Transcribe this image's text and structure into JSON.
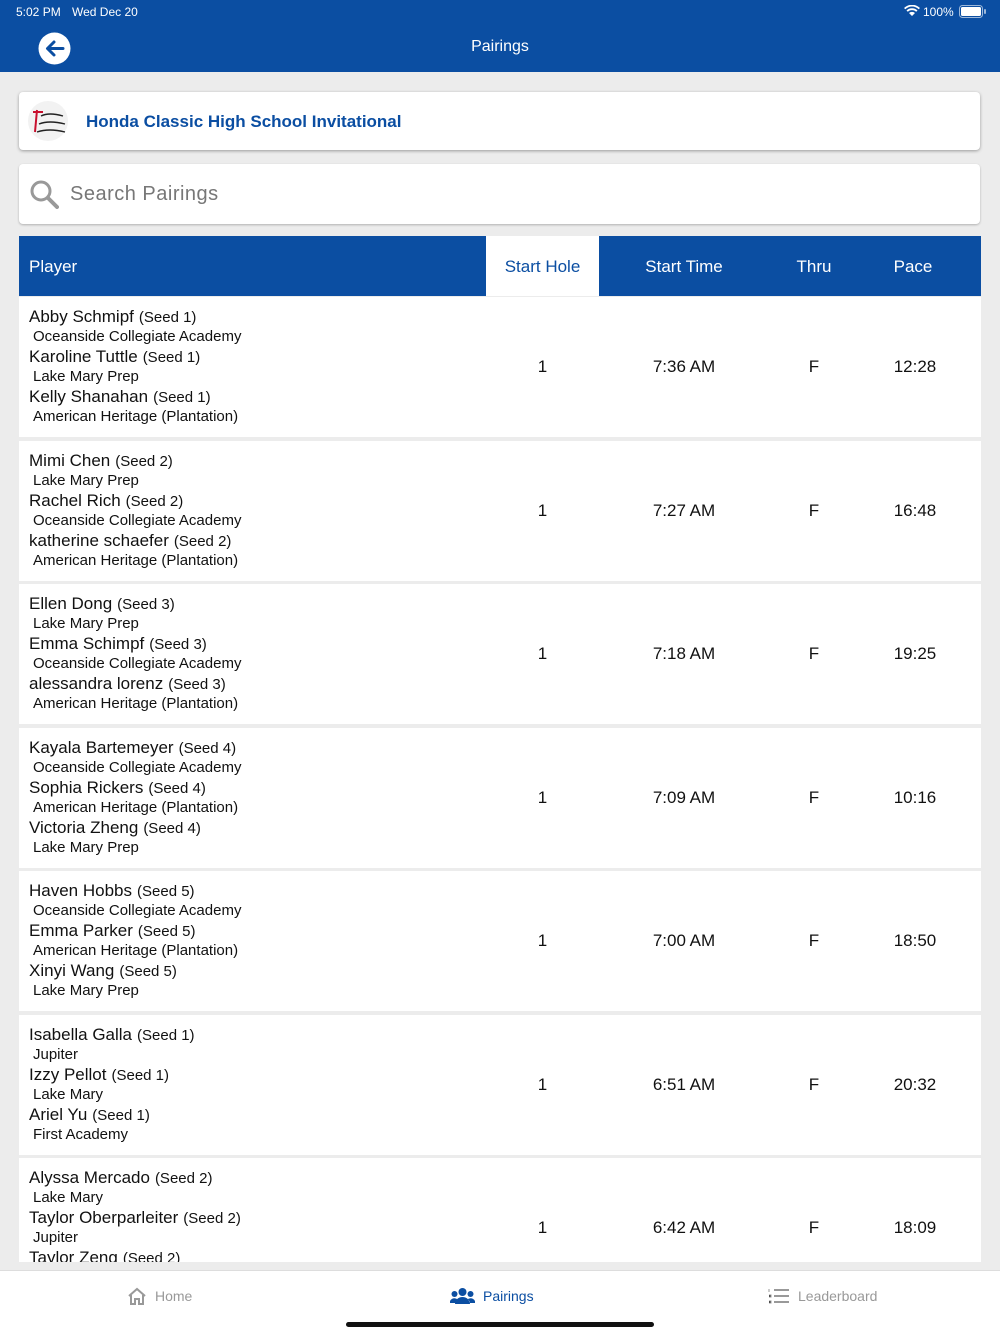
{
  "status": {
    "time": "5:02 PM",
    "date": "Wed Dec 20",
    "battery": "100%"
  },
  "header": {
    "title": "Pairings"
  },
  "tournament": {
    "name": "Honda Classic High School Invitational"
  },
  "search": {
    "placeholder": "Search Pairings"
  },
  "table": {
    "columns": [
      "Player",
      "Start Hole",
      "Start Time",
      "Thru",
      "Pace"
    ],
    "rows": [
      {
        "players": [
          {
            "name": "Abby Schmipf",
            "seed": "(Seed 1)",
            "school": "Oceanside Collegiate Academy"
          },
          {
            "name": "Karoline Tuttle",
            "seed": "(Seed 1)",
            "school": "Lake Mary Prep"
          },
          {
            "name": "Kelly Shanahan",
            "seed": "(Seed 1)",
            "school": "American Heritage (Plantation)"
          }
        ],
        "start_hole": 1,
        "start_time": "7:36 AM",
        "thru": "F",
        "pace": "12:28"
      },
      {
        "players": [
          {
            "name": "Mimi Chen",
            "seed": "(Seed 2)",
            "school": "Lake Mary Prep"
          },
          {
            "name": "Rachel Rich",
            "seed": "(Seed 2)",
            "school": "Oceanside Collegiate Academy"
          },
          {
            "name": "katherine schaefer",
            "seed": "(Seed 2)",
            "school": "American Heritage (Plantation)"
          }
        ],
        "start_hole": 1,
        "start_time": "7:27 AM",
        "thru": "F",
        "pace": "16:48"
      },
      {
        "players": [
          {
            "name": "Ellen Dong",
            "seed": "(Seed 3)",
            "school": "Lake Mary Prep"
          },
          {
            "name": "Emma Schimpf",
            "seed": "(Seed 3)",
            "school": "Oceanside Collegiate Academy"
          },
          {
            "name": "alessandra lorenz",
            "seed": "(Seed 3)",
            "school": "American Heritage (Plantation)"
          }
        ],
        "start_hole": 1,
        "start_time": "7:18 AM",
        "thru": "F",
        "pace": "19:25"
      },
      {
        "players": [
          {
            "name": "Kayala Bartemeyer",
            "seed": "(Seed 4)",
            "school": "Oceanside Collegiate Academy"
          },
          {
            "name": "Sophia Rickers",
            "seed": "(Seed 4)",
            "school": "American Heritage (Plantation)"
          },
          {
            "name": "Victoria Zheng",
            "seed": "(Seed 4)",
            "school": "Lake Mary Prep"
          }
        ],
        "start_hole": 1,
        "start_time": "7:09 AM",
        "thru": "F",
        "pace": "10:16"
      },
      {
        "players": [
          {
            "name": "Haven Hobbs",
            "seed": "(Seed 5)",
            "school": "Oceanside Collegiate Academy"
          },
          {
            "name": "Emma Parker",
            "seed": "(Seed 5)",
            "school": "American Heritage (Plantation)"
          },
          {
            "name": "Xinyi Wang",
            "seed": "(Seed 5)",
            "school": "Lake Mary Prep"
          }
        ],
        "start_hole": 1,
        "start_time": "7:00 AM",
        "thru": "F",
        "pace": "18:50"
      },
      {
        "players": [
          {
            "name": "Isabella Galla",
            "seed": "(Seed 1)",
            "school": "Jupiter"
          },
          {
            "name": "Izzy Pellot",
            "seed": "(Seed 1)",
            "school": "Lake Mary"
          },
          {
            "name": "Ariel Yu",
            "seed": "(Seed 1)",
            "school": "First Academy"
          }
        ],
        "start_hole": 1,
        "start_time": "6:51 AM",
        "thru": "F",
        "pace": "20:32"
      },
      {
        "players": [
          {
            "name": "Alyssa Mercado",
            "seed": "(Seed 2)",
            "school": "Lake Mary"
          },
          {
            "name": "Taylor Oberparleiter",
            "seed": "(Seed 2)",
            "school": "Jupiter"
          },
          {
            "name": "Taylor Zeng",
            "seed": "(Seed 2)"
          }
        ],
        "start_hole": 1,
        "start_time": "6:42 AM",
        "thru": "F",
        "pace": "18:09"
      }
    ]
  },
  "tabs": [
    "Home",
    "Pairings",
    "Leaderboard"
  ]
}
